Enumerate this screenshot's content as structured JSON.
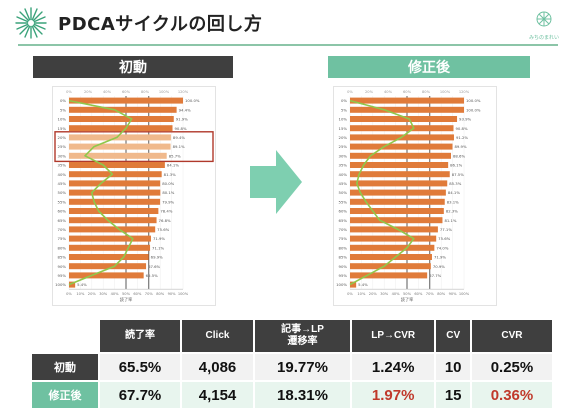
{
  "header": {
    "title": "PDCAサイクルの回し方"
  },
  "logo": {
    "text": "みちのまれい"
  },
  "left_panel": {
    "label": "初動"
  },
  "right_panel": {
    "label": "修正後"
  },
  "colors": {
    "bar": "#e07b3a",
    "line": "#8fc84b",
    "highlight": "#b0392b",
    "green_band": "#6fc1a1",
    "dark_band": "#3f3f3f",
    "arrow": "#7ecfb0",
    "red_text": "#c0392b"
  },
  "chart_data": [
    {
      "type": "bar",
      "orientation": "horizontal",
      "panel": "初動",
      "categories": [
        "0%",
        "5%",
        "10%",
        "15%",
        "20%",
        "25%",
        "30%",
        "35%",
        "40%",
        "45%",
        "50%",
        "55%",
        "60%",
        "65%",
        "70%",
        "75%",
        "80%",
        "85%",
        "90%",
        "95%",
        "100%"
      ],
      "values": [
        100.0,
        94.4,
        91.9,
        90.8,
        89.4,
        89.1,
        85.7,
        84.1,
        81.3,
        80.0,
        80.1,
        79.9,
        78.4,
        76.8,
        75.6,
        71.9,
        71.1,
        69.9,
        67.6,
        65.5,
        5.4
      ],
      "value_labels": [
        "100.0%",
        "94.4%",
        "91.9%",
        "90.8%",
        "89.4%",
        "89.1%",
        "85.7%",
        "84.1%",
        "81.3%",
        "80.0%",
        "80.1%",
        "79.9%",
        "78.4%",
        "76.8%",
        "75.6%",
        "71.9%",
        "71.1%",
        "69.9%",
        "67.6%",
        "65.5%",
        "5.4%"
      ],
      "line_values": [
        0,
        40,
        55,
        50,
        42,
        22,
        14,
        30,
        38,
        28,
        20,
        22,
        26,
        34,
        44,
        56,
        52,
        48,
        40,
        20,
        0
      ],
      "highlighted_rows": [
        "20%",
        "25%",
        "30%"
      ],
      "x_ticks": [
        "0%",
        "10%",
        "20%",
        "30%",
        "40%",
        "50%",
        "60%",
        "70%",
        "80%",
        "90%",
        "100%"
      ],
      "top_ticks": [
        "0%",
        "20%",
        "40%",
        "60%",
        "80%",
        "100%",
        "120%"
      ],
      "xlabel": "読了率",
      "xlim": [
        0,
        100
      ]
    },
    {
      "type": "bar",
      "orientation": "horizontal",
      "panel": "修正後",
      "categories": [
        "0%",
        "5%",
        "10%",
        "15%",
        "20%",
        "25%",
        "30%",
        "35%",
        "40%",
        "45%",
        "50%",
        "55%",
        "60%",
        "65%",
        "70%",
        "75%",
        "80%",
        "85%",
        "90%",
        "95%",
        "100%"
      ],
      "values": [
        100.0,
        100.0,
        93.9,
        90.8,
        91.2,
        89.9,
        88.6,
        86.1,
        87.5,
        85.3,
        84.1,
        83.1,
        82.3,
        81.1,
        77.1,
        75.6,
        74.0,
        71.9,
        70.9,
        67.7,
        5.4
      ],
      "value_labels": [
        "100.0%",
        "100.0%",
        "93.9%",
        "90.8%",
        "91.2%",
        "89.9%",
        "88.6%",
        "86.1%",
        "87.5%",
        "85.3%",
        "84.1%",
        "83.1%",
        "82.3%",
        "81.1%",
        "77.1%",
        "75.6%",
        "74.0%",
        "71.9%",
        "70.9%",
        "67.7%",
        "5.4%"
      ],
      "line_values": [
        0,
        30,
        52,
        56,
        45,
        30,
        18,
        12,
        8,
        6,
        9,
        14,
        20,
        26,
        42,
        56,
        50,
        40,
        30,
        15,
        0
      ],
      "x_ticks": [
        "0%",
        "10%",
        "20%",
        "30%",
        "40%",
        "50%",
        "60%",
        "70%",
        "80%",
        "90%",
        "100%"
      ],
      "top_ticks": [
        "0%",
        "20%",
        "40%",
        "60%",
        "80%",
        "100%",
        "120%"
      ],
      "xlabel": "読了率",
      "xlim": [
        0,
        100
      ]
    }
  ],
  "kpi_table": {
    "headers": [
      "読了率",
      "Click",
      "記事→LP\n遷移率",
      "LP→CVR",
      "CV",
      "CVR"
    ],
    "rows": [
      {
        "label": "初動",
        "values": [
          "65.5%",
          "4,086",
          "19.77%",
          "1.24%",
          "10",
          "0.25%"
        ]
      },
      {
        "label": "修正後",
        "values": [
          "67.7%",
          "4,154",
          "18.31%",
          "1.97%",
          "15",
          "0.36%"
        ]
      }
    ]
  }
}
